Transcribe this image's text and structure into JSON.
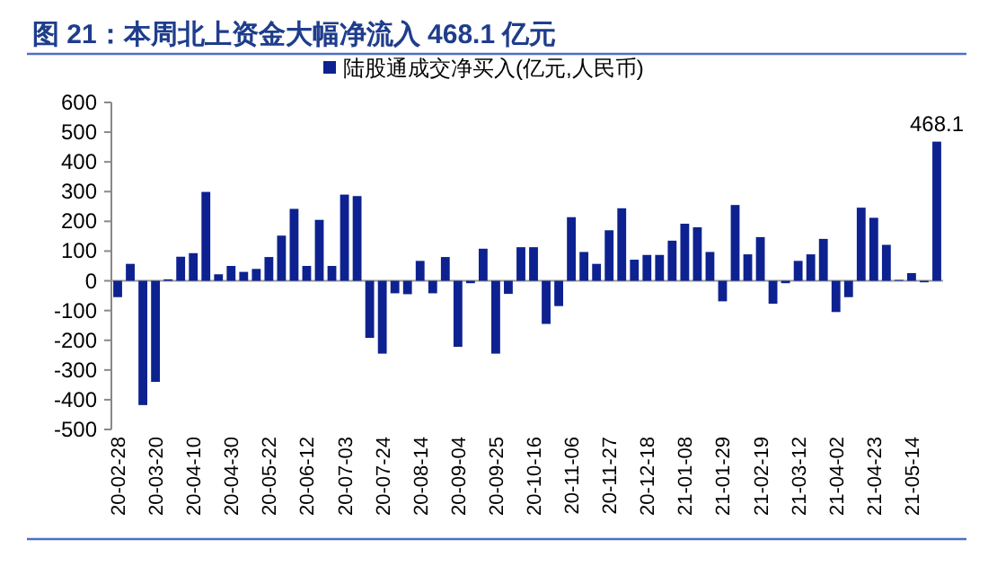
{
  "chart_data": {
    "type": "bar",
    "title": "图 21：本周北上资金大幅净流入 468.1 亿元",
    "categories": [
      "20-02-28",
      null,
      null,
      "20-03-20",
      null,
      null,
      "20-04-10",
      null,
      null,
      "20-04-30",
      null,
      null,
      "20-05-22",
      null,
      null,
      "20-06-12",
      null,
      null,
      "20-07-03",
      null,
      null,
      "20-07-24",
      null,
      null,
      "20-08-14",
      null,
      null,
      "20-09-04",
      null,
      null,
      "20-09-25",
      null,
      null,
      "20-10-16",
      null,
      null,
      "20-11-06",
      null,
      null,
      "20-11-27",
      null,
      null,
      "20-12-18",
      null,
      null,
      "21-01-08",
      null,
      null,
      "21-01-29",
      null,
      null,
      "21-02-19",
      null,
      null,
      "21-03-12",
      null,
      null,
      "21-04-02",
      null,
      null,
      "21-04-23",
      null,
      null,
      "21-05-14",
      null,
      null
    ],
    "series": [
      {
        "name": "陆股通成交净买入(亿元,人民币)",
        "color": "#0d2290",
        "values": [
          -55,
          57,
          -418,
          -340,
          5,
          81,
          93,
          299,
          22,
          50,
          30,
          40,
          80,
          152,
          242,
          50,
          205,
          50,
          290,
          285,
          -192,
          -245,
          -42,
          -45,
          67,
          -42,
          80,
          -222,
          -8,
          108,
          -245,
          -44,
          113,
          113,
          -145,
          -85,
          214,
          97,
          57,
          170,
          244,
          71,
          87,
          87,
          135,
          192,
          180,
          97,
          -69,
          255,
          89,
          147,
          -77,
          -8,
          67,
          89,
          141,
          -105,
          -55,
          246,
          212,
          121,
          3,
          26,
          -5,
          468.1
        ],
        "value_labels": [
          null,
          null,
          null,
          null,
          null,
          null,
          null,
          null,
          null,
          null,
          null,
          null,
          null,
          null,
          null,
          null,
          null,
          null,
          null,
          null,
          null,
          null,
          null,
          null,
          null,
          null,
          null,
          null,
          null,
          null,
          null,
          null,
          null,
          null,
          null,
          null,
          null,
          null,
          null,
          null,
          null,
          null,
          null,
          null,
          null,
          null,
          null,
          null,
          null,
          null,
          null,
          null,
          null,
          null,
          null,
          null,
          null,
          null,
          null,
          null,
          null,
          null,
          null,
          null,
          null,
          "468.1"
        ]
      }
    ],
    "ylim": [
      -500,
      600
    ],
    "yticks": [
      -500,
      -400,
      -300,
      -200,
      -100,
      0,
      100,
      200,
      300,
      400,
      500,
      600
    ],
    "legend": "top"
  }
}
